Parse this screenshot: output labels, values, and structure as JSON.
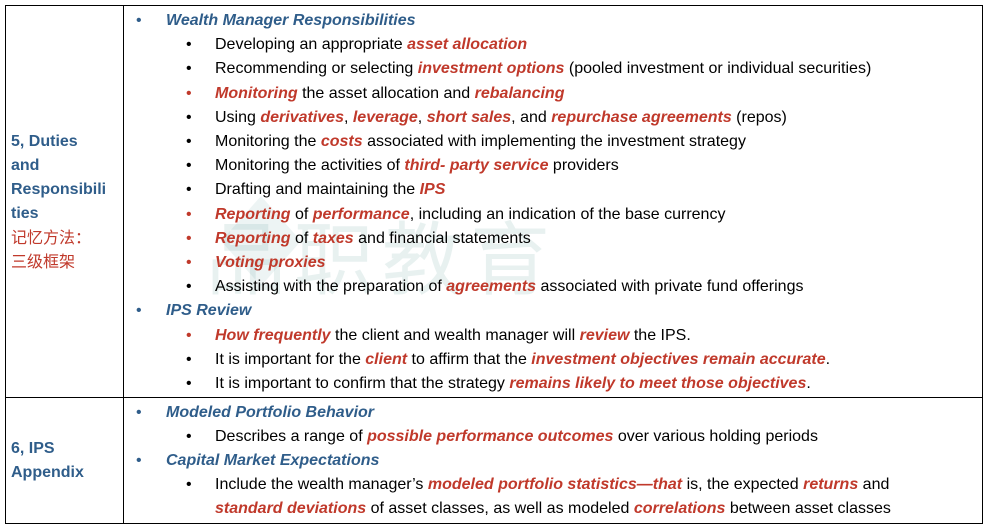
{
  "row1": {
    "label_lines": [
      "5, Duties",
      "and",
      "Responsibili",
      "ties"
    ],
    "memo_lines": [
      "记忆方法：",
      "三级框架"
    ],
    "lines": [
      {
        "level": 1,
        "parts": [
          {
            "t": "Wealth Manager Responsibilities",
            "s": "head"
          }
        ]
      },
      {
        "level": 2,
        "parts": [
          {
            "t": "Developing an appropriate "
          },
          {
            "t": "asset allocation",
            "s": "em"
          }
        ]
      },
      {
        "level": 2,
        "parts": [
          {
            "t": "Recommending or selecting "
          },
          {
            "t": "investment options",
            "s": "em"
          },
          {
            "t": " (pooled investment or individual securities)"
          }
        ]
      },
      {
        "level": 2,
        "red": true,
        "parts": [
          {
            "t": "Monitoring",
            "s": "em"
          },
          {
            "t": " the asset allocation and "
          },
          {
            "t": "rebalancing",
            "s": "em"
          }
        ]
      },
      {
        "level": 2,
        "parts": [
          {
            "t": "Using "
          },
          {
            "t": "derivatives",
            "s": "em"
          },
          {
            "t": ", "
          },
          {
            "t": "leverage",
            "s": "em"
          },
          {
            "t": ", "
          },
          {
            "t": "short sales",
            "s": "em"
          },
          {
            "t": ", and "
          },
          {
            "t": "repurchase agreements",
            "s": "em"
          },
          {
            "t": " (repos)"
          }
        ]
      },
      {
        "level": 2,
        "parts": [
          {
            "t": "Monitoring the "
          },
          {
            "t": "costs",
            "s": "em"
          },
          {
            "t": " associated with implementing the investment strategy"
          }
        ]
      },
      {
        "level": 2,
        "parts": [
          {
            "t": "Monitoring the activities of "
          },
          {
            "t": "third- party service",
            "s": "em"
          },
          {
            "t": " providers"
          }
        ]
      },
      {
        "level": 2,
        "parts": [
          {
            "t": "Drafting and maintaining the "
          },
          {
            "t": "IPS",
            "s": "em"
          }
        ]
      },
      {
        "level": 2,
        "red": true,
        "parts": [
          {
            "t": "Reporting",
            "s": "em"
          },
          {
            "t": " of "
          },
          {
            "t": "performance",
            "s": "em"
          },
          {
            "t": ", including an indication of the base currency"
          }
        ]
      },
      {
        "level": 2,
        "red": true,
        "parts": [
          {
            "t": "Reporting",
            "s": "em"
          },
          {
            "t": " of "
          },
          {
            "t": "taxes",
            "s": "em"
          },
          {
            "t": " and financial statements"
          }
        ]
      },
      {
        "level": 2,
        "red": true,
        "parts": [
          {
            "t": "Voting proxies",
            "s": "em"
          }
        ]
      },
      {
        "level": 2,
        "parts": [
          {
            "t": "Assisting with the preparation of "
          },
          {
            "t": "agreements",
            "s": "em"
          },
          {
            "t": " associated with private fund offerings"
          }
        ]
      },
      {
        "level": 1,
        "parts": [
          {
            "t": "IPS Review",
            "s": "head"
          }
        ]
      },
      {
        "level": 2,
        "red": true,
        "parts": [
          {
            "t": "How frequently",
            "s": "em"
          },
          {
            "t": " the client and wealth manager will "
          },
          {
            "t": "review",
            "s": "em"
          },
          {
            "t": " the IPS."
          }
        ]
      },
      {
        "level": 2,
        "parts": [
          {
            "t": "It is important for the "
          },
          {
            "t": "client",
            "s": "em"
          },
          {
            "t": " to affirm that the "
          },
          {
            "t": "investment objectives remain accurate",
            "s": "em"
          },
          {
            "t": "."
          }
        ]
      },
      {
        "level": 2,
        "parts": [
          {
            "t": "It is important to confirm that the strategy "
          },
          {
            "t": "remains likely to meet those objectives",
            "s": "em"
          },
          {
            "t": "."
          }
        ]
      }
    ]
  },
  "row2": {
    "label_lines": [
      "6, IPS",
      "Appendix"
    ],
    "lines": [
      {
        "level": 1,
        "parts": [
          {
            "t": "Modeled Portfolio Behavior",
            "s": "head"
          }
        ]
      },
      {
        "level": 2,
        "parts": [
          {
            "t": "Describes a range of "
          },
          {
            "t": "possible performance outcomes",
            "s": "em"
          },
          {
            "t": " over various holding periods"
          }
        ]
      },
      {
        "level": 1,
        "parts": [
          {
            "t": "Capital Market Expectations",
            "s": "head"
          }
        ]
      },
      {
        "level": 2,
        "parts": [
          {
            "t": "Include the wealth manager’s "
          },
          {
            "t": "modeled portfolio statistics—that",
            "s": "em"
          },
          {
            "t": " is, the expected "
          },
          {
            "t": "returns",
            "s": "em"
          },
          {
            "t": " and"
          }
        ]
      },
      {
        "level": 0,
        "parts": [
          {
            "t": "standard deviations",
            "s": "em"
          },
          {
            "t": " of asset classes, as well as modeled "
          },
          {
            "t": "correlations",
            "s": "em"
          },
          {
            "t": " between asset classes"
          }
        ]
      }
    ]
  },
  "watermark": {
    "text": "品职教育"
  }
}
